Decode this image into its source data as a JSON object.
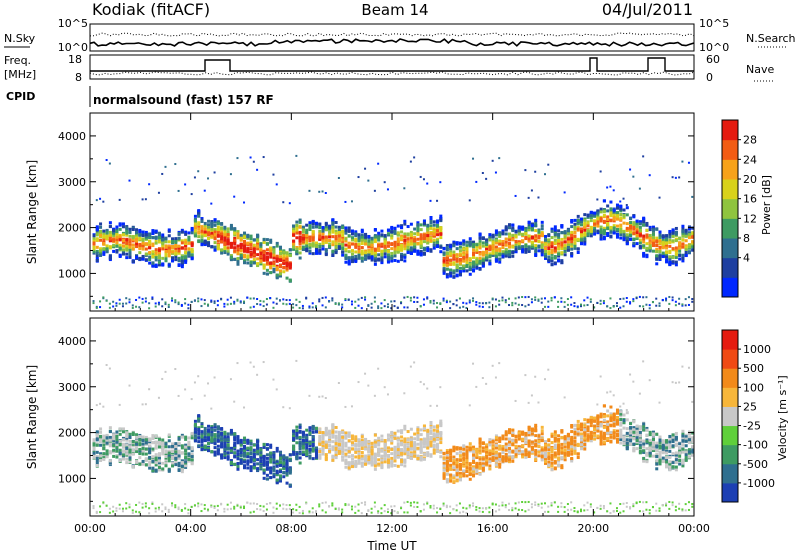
{
  "header": {
    "station": "Kodiak (fitACF)",
    "beam": "Beam 14",
    "date": "04/Jul/2011",
    "program": "normalsound (fast) 157 RF"
  },
  "side_labels": {
    "nsky": "N.Sky",
    "freq": "Freq.",
    "freq_unit": "[MHz]",
    "cpid": "CPID",
    "nsearch": "N.Search",
    "nave": "Nave"
  },
  "strip_ticks": {
    "noise_left": [
      "10^5",
      "10^0"
    ],
    "noise_right": [
      "10^5",
      "10^0"
    ],
    "freq_left": [
      "18",
      "8"
    ],
    "nave_right": [
      "60",
      "0"
    ]
  },
  "chart_data": [
    {
      "type": "heatmap",
      "panel": "power",
      "title": "",
      "xlabel": "",
      "ylabel": "Slant Range [km]",
      "ylim": [
        180,
        4500
      ],
      "yticks": [
        "1000",
        "2000",
        "3000",
        "4000"
      ],
      "colorbar_label": "Power [dB]",
      "colorbar_ticks": [
        "28",
        "24",
        "20",
        "16",
        "12",
        "8",
        "4"
      ],
      "colors": [
        "#0028ff",
        "#1e3fa0",
        "#2f6f8f",
        "#3e9b62",
        "#8fc43f",
        "#d8d21b",
        "#f7a21a",
        "#f25c14",
        "#e51b10"
      ]
    },
    {
      "type": "heatmap",
      "panel": "velocity",
      "title": "",
      "xlabel": "Time UT",
      "ylabel": "Slant Range [km]",
      "ylim": [
        180,
        4500
      ],
      "xticks": [
        "00:00",
        "04:00",
        "08:00",
        "12:00",
        "16:00",
        "20:00",
        "00:00"
      ],
      "yticks": [
        "1000",
        "2000",
        "3000",
        "4000"
      ],
      "colorbar_label": "Velocity [m s⁻¹]",
      "colorbar_ticks": [
        "1000",
        "500",
        "100",
        "25",
        "-25",
        "-100",
        "-500",
        "-1000"
      ],
      "colors": [
        "#1c3fb3",
        "#2f6f8f",
        "#3e9b62",
        "#5fcf3a",
        "#c8c8c8",
        "#f7b63a",
        "#f28a1a",
        "#f04a14",
        "#e51b10"
      ]
    }
  ]
}
